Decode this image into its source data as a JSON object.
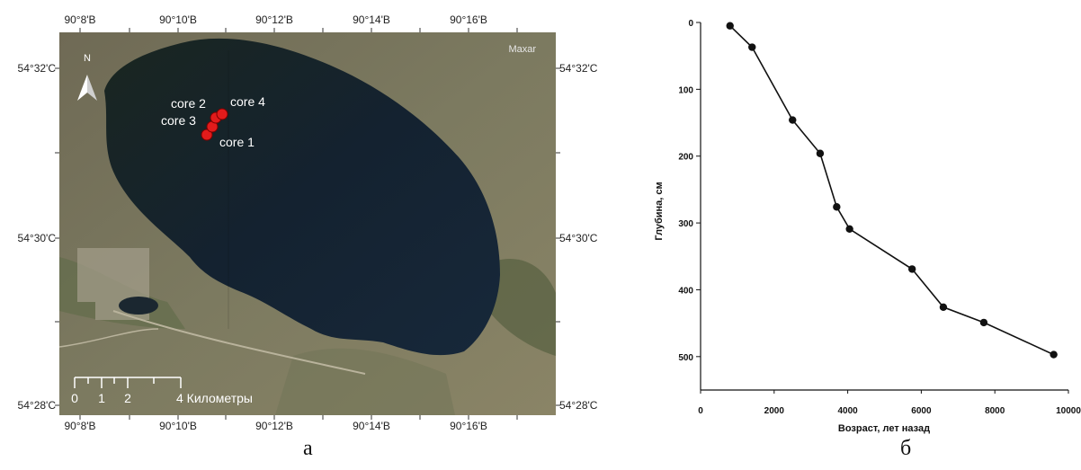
{
  "map": {
    "top_lon_labels": [
      "90°8'В",
      "90°10'В",
      "90°12'В",
      "90°14'В",
      "90°16'В"
    ],
    "bottom_lon_labels": [
      "90°8'В",
      "90°10'В",
      "90°12'В",
      "90°14'В",
      "90°16'В"
    ],
    "left_lat_labels": [
      "54°32'С",
      "54°30'С",
      "54°28'С"
    ],
    "right_lat_labels": [
      "54°32'С",
      "54°30'С",
      "54°28'С"
    ],
    "basemap_credit": "Maxar",
    "north_label": "N",
    "cores": [
      "core 1",
      "core 2",
      "core 3",
      "core 4"
    ],
    "scale_labels": [
      "0",
      "1",
      "2",
      "4 Километры"
    ],
    "caption": "а"
  },
  "chart_data": {
    "type": "line",
    "xlabel": "Возраст, лет назад",
    "ylabel": "Глубина, см",
    "xlim": [
      0,
      10000
    ],
    "ylim": [
      0,
      550
    ],
    "y_inverted": true,
    "xticks": [
      0,
      2000,
      4000,
      6000,
      8000,
      10000
    ],
    "yticks": [
      0,
      100,
      200,
      300,
      400,
      500
    ],
    "grid": false,
    "series": [
      {
        "x": [
          800,
          1400,
          2500,
          3250,
          3700,
          4050,
          5750,
          6600,
          7700,
          9600
        ],
        "y": [
          5,
          37,
          146,
          196,
          276,
          309,
          369,
          426,
          449,
          497
        ]
      }
    ],
    "caption": "б"
  }
}
